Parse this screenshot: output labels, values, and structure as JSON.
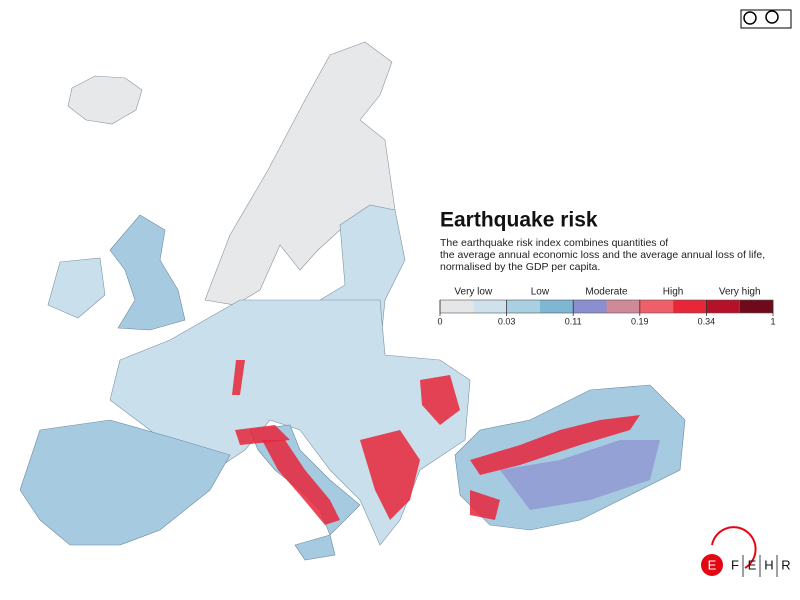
{
  "title": "Earthquake risk",
  "description": [
    "The earthquake risk index combines quantities of",
    "the average annual economic loss and the average annual loss of life,",
    "normalised by the GDP per capita."
  ],
  "legend": {
    "classes": [
      {
        "label": "Very low",
        "colors": [
          "#e4e6e8",
          "#cfe1ec"
        ]
      },
      {
        "label": "Low",
        "colors": [
          "#a9cfe2",
          "#7fb6d2"
        ]
      },
      {
        "label": "Moderate",
        "colors": [
          "#8b8fcf",
          "#cf8a9a"
        ]
      },
      {
        "label": "High",
        "colors": [
          "#ef5f6a",
          "#e8263a"
        ]
      },
      {
        "label": "Very high",
        "colors": [
          "#b5122a",
          "#6e0a1a"
        ]
      }
    ],
    "ticks": [
      0,
      0.03,
      0.11,
      0.19,
      0.34,
      1
    ]
  },
  "logo": [
    "E",
    "F",
    "E",
    "H",
    "R"
  ]
}
